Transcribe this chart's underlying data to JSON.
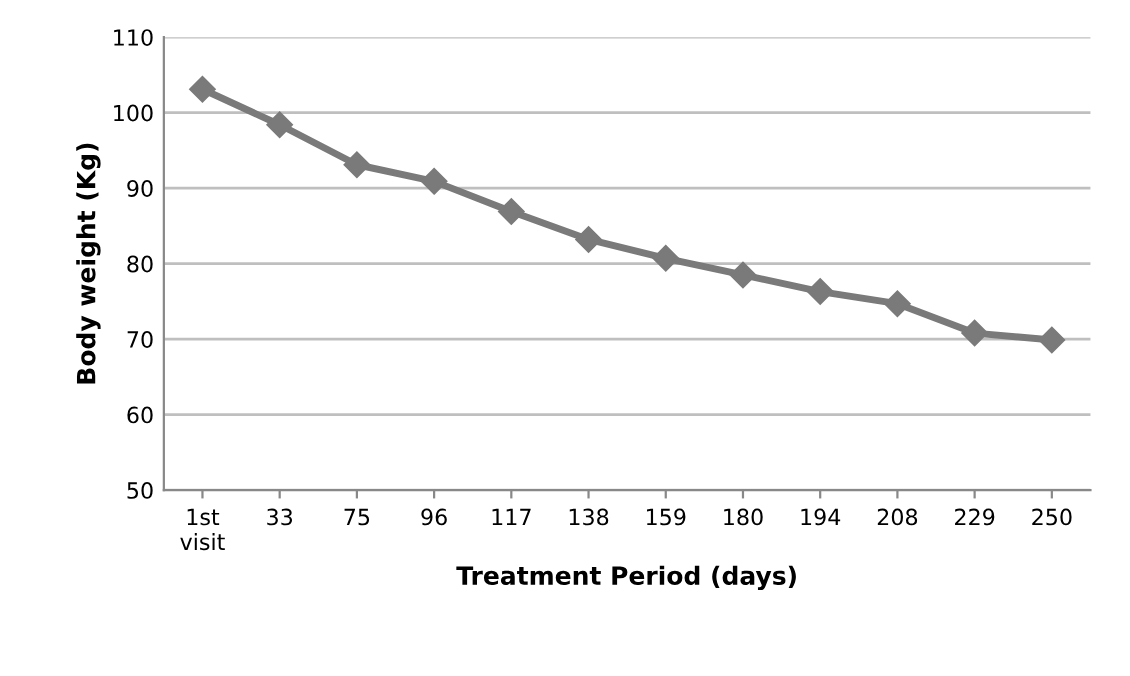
{
  "chart_data": {
    "type": "line",
    "xlabel": "Treatment Period (days)",
    "ylabel": "Body weight (Kg)",
    "categories": [
      "1st\nvisit",
      "33",
      "75",
      "96",
      "117",
      "138",
      "159",
      "180",
      "194",
      "208",
      "229",
      "250"
    ],
    "series": [
      {
        "color": "#7a7a7a",
        "values": [
          103.1,
          98.4,
          93.1,
          90.9,
          86.9,
          83.2,
          80.7,
          78.5,
          76.3,
          74.7,
          70.8,
          69.9
        ]
      }
    ],
    "ylim": [
      50,
      110
    ],
    "yticks": [
      50,
      60,
      70,
      80,
      90,
      100,
      110
    ],
    "grid": "y",
    "marker": "diamond",
    "line_style": "solid",
    "legend": false
  }
}
